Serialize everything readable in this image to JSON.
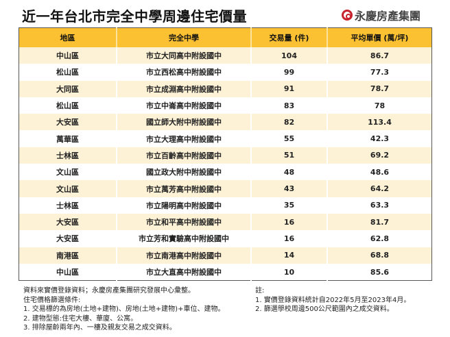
{
  "title": "近一年台北市完全中學周邊住宅價量",
  "logo": "永慶房產集團",
  "table": {
    "headers": [
      "地區",
      "完全中學",
      "交易量 (件)",
      "平均單價 (萬/坪)"
    ],
    "rows": [
      [
        "中山區",
        "市立大同高中附設國中",
        "104",
        "86.7"
      ],
      [
        "松山區",
        "市立西松高中附設國中",
        "99",
        "77.3"
      ],
      [
        "大同區",
        "市立成淵高中附設國中",
        "91",
        "78.7"
      ],
      [
        "松山區",
        "市立中崙高中附設國中",
        "83",
        "78"
      ],
      [
        "大安區",
        "國立師大附中附設國中",
        "82",
        "113.4"
      ],
      [
        "萬華區",
        "市立大理高中附設國中",
        "55",
        "42.3"
      ],
      [
        "士林區",
        "市立百齡高中附設國中",
        "51",
        "69.2"
      ],
      [
        "文山區",
        "國立政大附中附設國中",
        "48",
        "48.6"
      ],
      [
        "文山區",
        "市立萬芳高中附設國中",
        "43",
        "64.2"
      ],
      [
        "士林區",
        "市立陽明高中附設國中",
        "35",
        "63.3"
      ],
      [
        "大安區",
        "市立和平高中附設國中",
        "16",
        "81.7"
      ],
      [
        "大安區",
        "市立芳和實驗高中附設國中",
        "16",
        "62.8"
      ],
      [
        "南港區",
        "市立南港高中附設國中",
        "14",
        "68.8"
      ],
      [
        "中山區",
        "市立大直高中附設國中",
        "10",
        "85.6"
      ]
    ]
  },
  "notes_left": [
    "資料來實價登錄資料；永慶房產集團研究發展中心彙整。",
    "住宅價格篩選條件:",
    "1. 交易標的為房地(土地+建物)、房地(土地+建物)+車位、建物。",
    "2. 建物型態:住宅大樓、華廈、公寓。",
    "3. 排除屋齡兩年內、一樓及親友交易之成交資料。"
  ],
  "notes_right": [
    "註:",
    "1. 實價登錄資料統計自2022年5月至2023年4月。",
    "2. 篩選學校周邊500公尺範圍內之成交資料。"
  ],
  "colors": {
    "header": "#fbc132",
    "stripe": "#fdf2d6",
    "logo_red": "#c8232c"
  }
}
